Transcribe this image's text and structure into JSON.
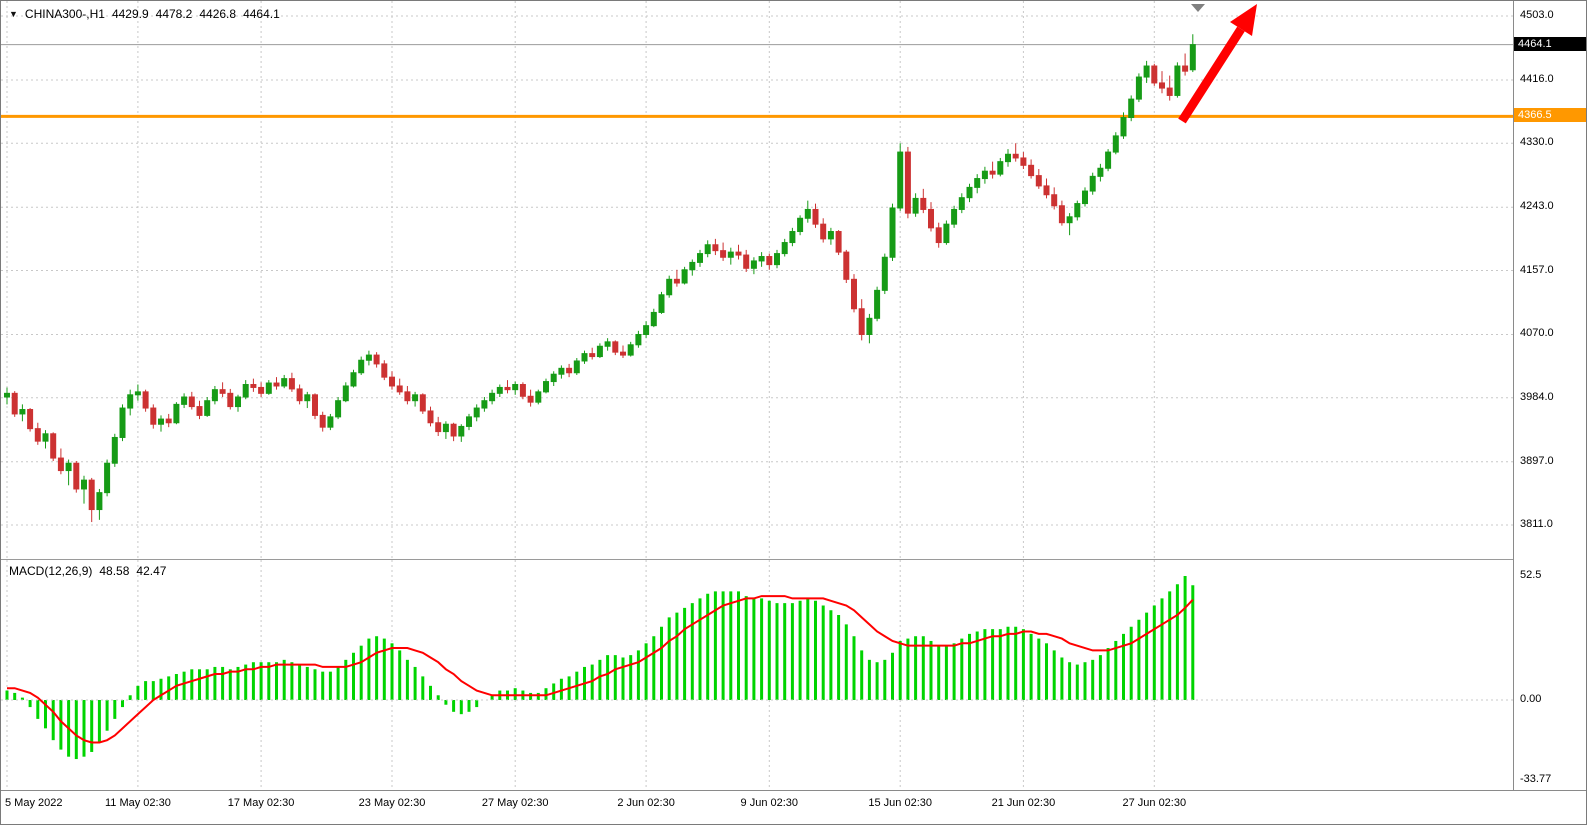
{
  "header": {
    "dropdown_icon": "triangle-down",
    "symbol_period": "CHINA300-,H1",
    "open": "4429.9",
    "high": "4478.2",
    "low": "4426.8",
    "close": "4464.1"
  },
  "macd_header": {
    "label": "MACD(12,26,9)",
    "main_value": "48.58",
    "signal_value": "42.47"
  },
  "price_axis": {
    "levels": [
      {
        "label": "4503.0",
        "value": 4503
      },
      {
        "label": "4416.0",
        "value": 4416
      },
      {
        "label": "4330.0",
        "value": 4330
      },
      {
        "label": "4243.0",
        "value": 4243
      },
      {
        "label": "4157.0",
        "value": 4157
      },
      {
        "label": "4070.0",
        "value": 4070
      },
      {
        "label": "3984.0",
        "value": 3984
      },
      {
        "label": "3897.0",
        "value": 3897
      },
      {
        "label": "3811.0",
        "value": 3811
      }
    ],
    "current_price_badge": {
      "label": "4464.1",
      "value": 4464.1,
      "bg": "#000000",
      "fg": "#ffffff"
    },
    "line_badge": {
      "label": "4366.5",
      "value": 4366.5,
      "bg": "#FF9800",
      "fg": "#ffffff"
    }
  },
  "macd_axis": {
    "levels": [
      {
        "label": "52.5",
        "value": 52.5
      },
      {
        "label": "0.00",
        "value": 0
      },
      {
        "label": "-33.77",
        "value": -33.77
      }
    ]
  },
  "time_axis": {
    "labels": [
      {
        "text": "5 May 2022",
        "bar_index": 0
      },
      {
        "text": "11 May 02:30",
        "bar_index": 17
      },
      {
        "text": "17 May 02:30",
        "bar_index": 33
      },
      {
        "text": "23 May 02:30",
        "bar_index": 50
      },
      {
        "text": "27 May 02:30",
        "bar_index": 66
      },
      {
        "text": "2 Jun 02:30",
        "bar_index": 83
      },
      {
        "text": "9 Jun 02:30",
        "bar_index": 99
      },
      {
        "text": "15 Jun 02:30",
        "bar_index": 116
      },
      {
        "text": "21 Jun 02:30",
        "bar_index": 132
      },
      {
        "text": "27 Jun 02:30",
        "bar_index": 149
      }
    ]
  },
  "chart_data": {
    "type": "candlestick",
    "title": "CHINA300- H1 candlestick chart with MACD(12,26,9) indicator",
    "y_axis": {
      "min": 3811,
      "max": 4503
    },
    "macd_y_axis": {
      "min": -33.77,
      "max": 52.5
    },
    "horizontal_line_price": 4366.5,
    "current_price": 4464.1,
    "grid": true,
    "annotations": [
      {
        "type": "arrow",
        "color": "#FF0000",
        "direction": "up-right",
        "near_price": 4366.5
      },
      {
        "type": "chart-shift-marker",
        "color": "#808080"
      }
    ],
    "colors": {
      "bull": "#169B16",
      "bear": "#CC3232",
      "macd_histogram": "#00D400",
      "macd_signal": "#FF0000",
      "grid": "#C8C8C8",
      "orange_line": "#FF9800",
      "bid_line": "#9B9B9B"
    },
    "candles_ohlc": [
      [
        3985,
        3998,
        3975,
        3990
      ],
      [
        3990,
        3993,
        3958,
        3962
      ],
      [
        3962,
        3975,
        3952,
        3968
      ],
      [
        3968,
        3970,
        3938,
        3942
      ],
      [
        3942,
        3950,
        3920,
        3925
      ],
      [
        3925,
        3940,
        3915,
        3935
      ],
      [
        3935,
        3937,
        3898,
        3902
      ],
      [
        3902,
        3915,
        3880,
        3885
      ],
      [
        3885,
        3900,
        3865,
        3895
      ],
      [
        3895,
        3898,
        3855,
        3860
      ],
      [
        3860,
        3878,
        3840,
        3872
      ],
      [
        3872,
        3875,
        3815,
        3832
      ],
      [
        3832,
        3860,
        3818,
        3855
      ],
      [
        3855,
        3900,
        3850,
        3895
      ],
      [
        3895,
        3935,
        3890,
        3930
      ],
      [
        3930,
        3975,
        3925,
        3970
      ],
      [
        3970,
        3995,
        3960,
        3988
      ],
      [
        3988,
        4002,
        3980,
        3992
      ],
      [
        3992,
        3995,
        3965,
        3970
      ],
      [
        3970,
        3975,
        3942,
        3948
      ],
      [
        3948,
        3960,
        3938,
        3955
      ],
      [
        3955,
        3962,
        3944,
        3950
      ],
      [
        3950,
        3978,
        3948,
        3975
      ],
      [
        3975,
        3990,
        3970,
        3985
      ],
      [
        3985,
        3992,
        3968,
        3972
      ],
      [
        3972,
        3980,
        3955,
        3960
      ],
      [
        3960,
        3985,
        3958,
        3980
      ],
      [
        3980,
        4000,
        3975,
        3995
      ],
      [
        3995,
        4005,
        3985,
        3990
      ],
      [
        3990,
        3996,
        3968,
        3972
      ],
      [
        3972,
        3988,
        3965,
        3985
      ],
      [
        3985,
        4008,
        3982,
        4002
      ],
      [
        4002,
        4010,
        3992,
        3998
      ],
      [
        3998,
        4005,
        3985,
        3990
      ],
      [
        3990,
        4008,
        3988,
        4004
      ],
      [
        4004,
        4012,
        3995,
        4000
      ],
      [
        4000,
        4015,
        3997,
        4010
      ],
      [
        4010,
        4018,
        3992,
        3996
      ],
      [
        3996,
        4002,
        3975,
        3980
      ],
      [
        3980,
        3992,
        3970,
        3988
      ],
      [
        3988,
        3990,
        3955,
        3960
      ],
      [
        3960,
        3965,
        3938,
        3944
      ],
      [
        3944,
        3962,
        3940,
        3958
      ],
      [
        3958,
        3985,
        3955,
        3980
      ],
      [
        3980,
        4005,
        3978,
        4000
      ],
      [
        4000,
        4022,
        3998,
        4018
      ],
      [
        4018,
        4040,
        4015,
        4035
      ],
      [
        4035,
        4048,
        4028,
        4042
      ],
      [
        4042,
        4046,
        4025,
        4030
      ],
      [
        4030,
        4035,
        4008,
        4012
      ],
      [
        4012,
        4020,
        3995,
        4000
      ],
      [
        4000,
        4010,
        3988,
        3992
      ],
      [
        3992,
        4000,
        3975,
        3980
      ],
      [
        3980,
        3992,
        3972,
        3988
      ],
      [
        3988,
        3990,
        3962,
        3966
      ],
      [
        3966,
        3972,
        3945,
        3950
      ],
      [
        3950,
        3958,
        3932,
        3938
      ],
      [
        3938,
        3952,
        3928,
        3948
      ],
      [
        3948,
        3950,
        3925,
        3932
      ],
      [
        3932,
        3948,
        3924,
        3945
      ],
      [
        3945,
        3962,
        3940,
        3958
      ],
      [
        3958,
        3975,
        3952,
        3970
      ],
      [
        3970,
        3985,
        3965,
        3980
      ],
      [
        3980,
        3995,
        3975,
        3990
      ],
      [
        3990,
        4002,
        3985,
        3998
      ],
      [
        3998,
        4008,
        3990,
        3995
      ],
      [
        3995,
        4006,
        3988,
        4002
      ],
      [
        4002,
        4005,
        3982,
        3986
      ],
      [
        3986,
        3995,
        3972,
        3978
      ],
      [
        3978,
        3995,
        3975,
        3992
      ],
      [
        3992,
        4010,
        3990,
        4006
      ],
      [
        4006,
        4020,
        4000,
        4016
      ],
      [
        4016,
        4028,
        4010,
        4024
      ],
      [
        4024,
        4030,
        4012,
        4018
      ],
      [
        4018,
        4038,
        4015,
        4034
      ],
      [
        4034,
        4048,
        4030,
        4044
      ],
      [
        4044,
        4052,
        4036,
        4040
      ],
      [
        4040,
        4058,
        4038,
        4054
      ],
      [
        4054,
        4065,
        4048,
        4060
      ],
      [
        4060,
        4062,
        4042,
        4046
      ],
      [
        4046,
        4055,
        4038,
        4042
      ],
      [
        4042,
        4060,
        4040,
        4056
      ],
      [
        4056,
        4075,
        4052,
        4070
      ],
      [
        4070,
        4088,
        4065,
        4082
      ],
      [
        4082,
        4105,
        4080,
        4100
      ],
      [
        4100,
        4128,
        4098,
        4124
      ],
      [
        4124,
        4150,
        4120,
        4145
      ],
      [
        4145,
        4158,
        4135,
        4140
      ],
      [
        4140,
        4162,
        4138,
        4158
      ],
      [
        4158,
        4172,
        4150,
        4168
      ],
      [
        4168,
        4185,
        4162,
        4180
      ],
      [
        4180,
        4198,
        4175,
        4192
      ],
      [
        4192,
        4200,
        4178,
        4184
      ],
      [
        4184,
        4195,
        4170,
        4175
      ],
      [
        4175,
        4188,
        4165,
        4182
      ],
      [
        4182,
        4192,
        4172,
        4178
      ],
      [
        4178,
        4185,
        4155,
        4160
      ],
      [
        4160,
        4175,
        4152,
        4170
      ],
      [
        4170,
        4182,
        4162,
        4176
      ],
      [
        4176,
        4180,
        4158,
        4165
      ],
      [
        4165,
        4185,
        4160,
        4180
      ],
      [
        4180,
        4200,
        4176,
        4195
      ],
      [
        4195,
        4215,
        4190,
        4210
      ],
      [
        4210,
        4232,
        4205,
        4228
      ],
      [
        4228,
        4252,
        4222,
        4240
      ],
      [
        4240,
        4248,
        4215,
        4220
      ],
      [
        4220,
        4228,
        4195,
        4200
      ],
      [
        4200,
        4215,
        4192,
        4210
      ],
      [
        4210,
        4212,
        4178,
        4182
      ],
      [
        4182,
        4185,
        4140,
        4145
      ],
      [
        4145,
        4152,
        4100,
        4105
      ],
      [
        4105,
        4118,
        4062,
        4070
      ],
      [
        4070,
        4098,
        4058,
        4092
      ],
      [
        4092,
        4135,
        4088,
        4130
      ],
      [
        4130,
        4180,
        4125,
        4175
      ],
      [
        4175,
        4248,
        4170,
        4242
      ],
      [
        4242,
        4330,
        4238,
        4318
      ],
      [
        4318,
        4325,
        4228,
        4235
      ],
      [
        4235,
        4262,
        4230,
        4255
      ],
      [
        4255,
        4268,
        4235,
        4240
      ],
      [
        4240,
        4250,
        4210,
        4215
      ],
      [
        4215,
        4222,
        4188,
        4195
      ],
      [
        4195,
        4225,
        4192,
        4220
      ],
      [
        4220,
        4245,
        4215,
        4240
      ],
      [
        4240,
        4262,
        4235,
        4256
      ],
      [
        4256,
        4275,
        4250,
        4270
      ],
      [
        4270,
        4288,
        4262,
        4282
      ],
      [
        4282,
        4298,
        4275,
        4292
      ],
      [
        4292,
        4305,
        4282,
        4288
      ],
      [
        4288,
        4310,
        4285,
        4305
      ],
      [
        4305,
        4322,
        4298,
        4315
      ],
      [
        4315,
        4330,
        4305,
        4310
      ],
      [
        4310,
        4318,
        4295,
        4300
      ],
      [
        4300,
        4308,
        4282,
        4286
      ],
      [
        4286,
        4295,
        4268,
        4272
      ],
      [
        4272,
        4282,
        4255,
        4260
      ],
      [
        4260,
        4270,
        4240,
        4245
      ],
      [
        4245,
        4252,
        4218,
        4222
      ],
      [
        4222,
        4235,
        4205,
        4230
      ],
      [
        4230,
        4252,
        4225,
        4248
      ],
      [
        4248,
        4270,
        4244,
        4265
      ],
      [
        4265,
        4290,
        4260,
        4285
      ],
      [
        4285,
        4302,
        4278,
        4296
      ],
      [
        4296,
        4322,
        4292,
        4318
      ],
      [
        4318,
        4345,
        4315,
        4340
      ],
      [
        4340,
        4372,
        4336,
        4365
      ],
      [
        4365,
        4395,
        4360,
        4390
      ],
      [
        4390,
        4425,
        4386,
        4420
      ],
      [
        4420,
        4442,
        4412,
        4435
      ],
      [
        4435,
        4438,
        4408,
        4412
      ],
      [
        4412,
        4428,
        4398,
        4405
      ],
      [
        4405,
        4422,
        4388,
        4395
      ],
      [
        4395,
        4440,
        4392,
        4435
      ],
      [
        4435,
        4452,
        4422,
        4428
      ],
      [
        4429.9,
        4478.2,
        4426.8,
        4464.1
      ]
    ],
    "macd": {
      "histogram": [
        4,
        3,
        1,
        -3,
        -8,
        -12,
        -17,
        -21,
        -24,
        -25,
        -24,
        -22,
        -18,
        -13,
        -8,
        -3,
        2,
        6,
        8,
        8,
        9,
        10,
        11,
        12,
        13,
        13,
        13,
        14,
        14,
        13,
        14,
        15,
        16,
        16,
        16,
        16,
        17,
        16,
        15,
        14,
        13,
        12,
        12,
        14,
        17,
        20,
        23,
        26,
        27,
        26,
        24,
        21,
        17,
        14,
        10,
        6,
        2,
        -2,
        -5,
        -6,
        -5,
        -3,
        0,
        2,
        4,
        4,
        5,
        4,
        3,
        3,
        5,
        7,
        9,
        10,
        12,
        14,
        15,
        17,
        19,
        19,
        18,
        19,
        21,
        24,
        27,
        31,
        35,
        37,
        39,
        41,
        43,
        45,
        46,
        46,
        46,
        46,
        44,
        43,
        43,
        42,
        41,
        41,
        41,
        42,
        43,
        42,
        40,
        38,
        36,
        32,
        27,
        21,
        17,
        16,
        17,
        20,
        25,
        26,
        27,
        27,
        25,
        23,
        23,
        24,
        26,
        28,
        29,
        30,
        30,
        30,
        31,
        31,
        30,
        28,
        26,
        24,
        21,
        18,
        16,
        15,
        16,
        17,
        19,
        22,
        25,
        28,
        31,
        34,
        37,
        40,
        43,
        46,
        49,
        52.5,
        48.58
      ],
      "signal": [
        5,
        5,
        4,
        3,
        1,
        -2,
        -5,
        -9,
        -12,
        -15,
        -17,
        -18,
        -18,
        -17,
        -15,
        -12,
        -9,
        -6,
        -3,
        0,
        2,
        4,
        6,
        7,
        8,
        9,
        10,
        11,
        11,
        12,
        12,
        13,
        13,
        14,
        14,
        15,
        15,
        15,
        15,
        15,
        15,
        14,
        14,
        14,
        14,
        15,
        16,
        18,
        20,
        21,
        22,
        22,
        22,
        21,
        20,
        18,
        16,
        13,
        11,
        8,
        6,
        4,
        3,
        2,
        2,
        2,
        2,
        2,
        2,
        2,
        2,
        3,
        4,
        5,
        6,
        7,
        8,
        10,
        11,
        13,
        14,
        15,
        16,
        18,
        20,
        22,
        25,
        27,
        30,
        32,
        34,
        36,
        38,
        40,
        41,
        42,
        43,
        43,
        44,
        44,
        44,
        44,
        43,
        43,
        43,
        43,
        43,
        42,
        41,
        40,
        38,
        35,
        32,
        29,
        27,
        25,
        24,
        23,
        23,
        23,
        23,
        23,
        23,
        23,
        24,
        24,
        25,
        26,
        27,
        27,
        28,
        28,
        29,
        29,
        28,
        28,
        27,
        26,
        24,
        23,
        22,
        21,
        21,
        21,
        22,
        23,
        24,
        26,
        28,
        30,
        32,
        34,
        36,
        39,
        42.47
      ]
    }
  }
}
